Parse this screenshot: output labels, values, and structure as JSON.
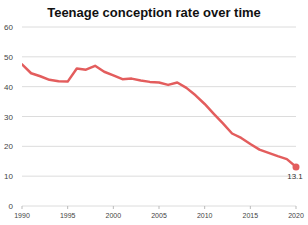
{
  "chart_data": {
    "type": "line",
    "title": "Teenage conception rate over time",
    "x": [
      1990,
      1991,
      1992,
      1993,
      1994,
      1995,
      1996,
      1997,
      1998,
      1999,
      2000,
      2001,
      2002,
      2003,
      2004,
      2005,
      2006,
      2007,
      2008,
      2009,
      2010,
      2011,
      2012,
      2013,
      2014,
      2015,
      2016,
      2017,
      2018,
      2019,
      2020
    ],
    "values": [
      47.5,
      44.5,
      43.5,
      42.3,
      41.8,
      41.7,
      46.1,
      45.7,
      47.0,
      45.0,
      43.8,
      42.5,
      42.7,
      42.1,
      41.6,
      41.4,
      40.6,
      41.4,
      39.6,
      37.1,
      34.2,
      30.9,
      27.7,
      24.3,
      22.8,
      20.8,
      18.9,
      17.8,
      16.7,
      15.7,
      13.1
    ],
    "color": "#e35d5d",
    "xlim": [
      1990,
      2020
    ],
    "xticks": [
      1990,
      1995,
      2000,
      2005,
      2010,
      2015,
      2020
    ],
    "ylim": [
      0,
      60
    ],
    "yticks": [
      0,
      10,
      20,
      30,
      40,
      50,
      60
    ],
    "grid": true,
    "annotations": [
      {
        "text": "13.1",
        "x": 2020,
        "y": 13.1
      }
    ]
  }
}
